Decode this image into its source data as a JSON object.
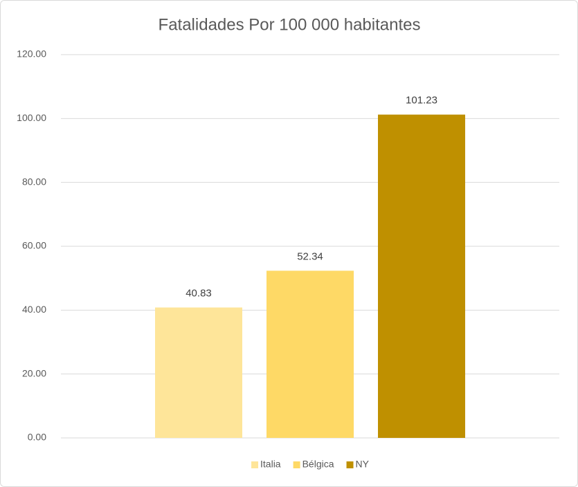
{
  "chart_data": {
    "type": "bar",
    "title": "Fatalidades Por 100 000 habitantes",
    "categories": [
      null
    ],
    "series": [
      {
        "name": "Italia",
        "color": "#fee599",
        "values": [
          40.83
        ]
      },
      {
        "name": "Bélgica",
        "color": "#fed966",
        "values": [
          52.34
        ]
      },
      {
        "name": "NY",
        "color": "#bf9000",
        "values": [
          101.23
        ]
      }
    ],
    "ylim": [
      0,
      120
    ],
    "yticks": [
      {
        "value": 0,
        "label": "0.00"
      },
      {
        "value": 20,
        "label": "20.00"
      },
      {
        "value": 40,
        "label": "40.00"
      },
      {
        "value": 60,
        "label": "60.00"
      },
      {
        "value": 80,
        "label": "80.00"
      },
      {
        "value": 100,
        "label": "100.00"
      },
      {
        "value": 120,
        "label": "120.00"
      }
    ],
    "grid": true,
    "legend": "bottom"
  }
}
